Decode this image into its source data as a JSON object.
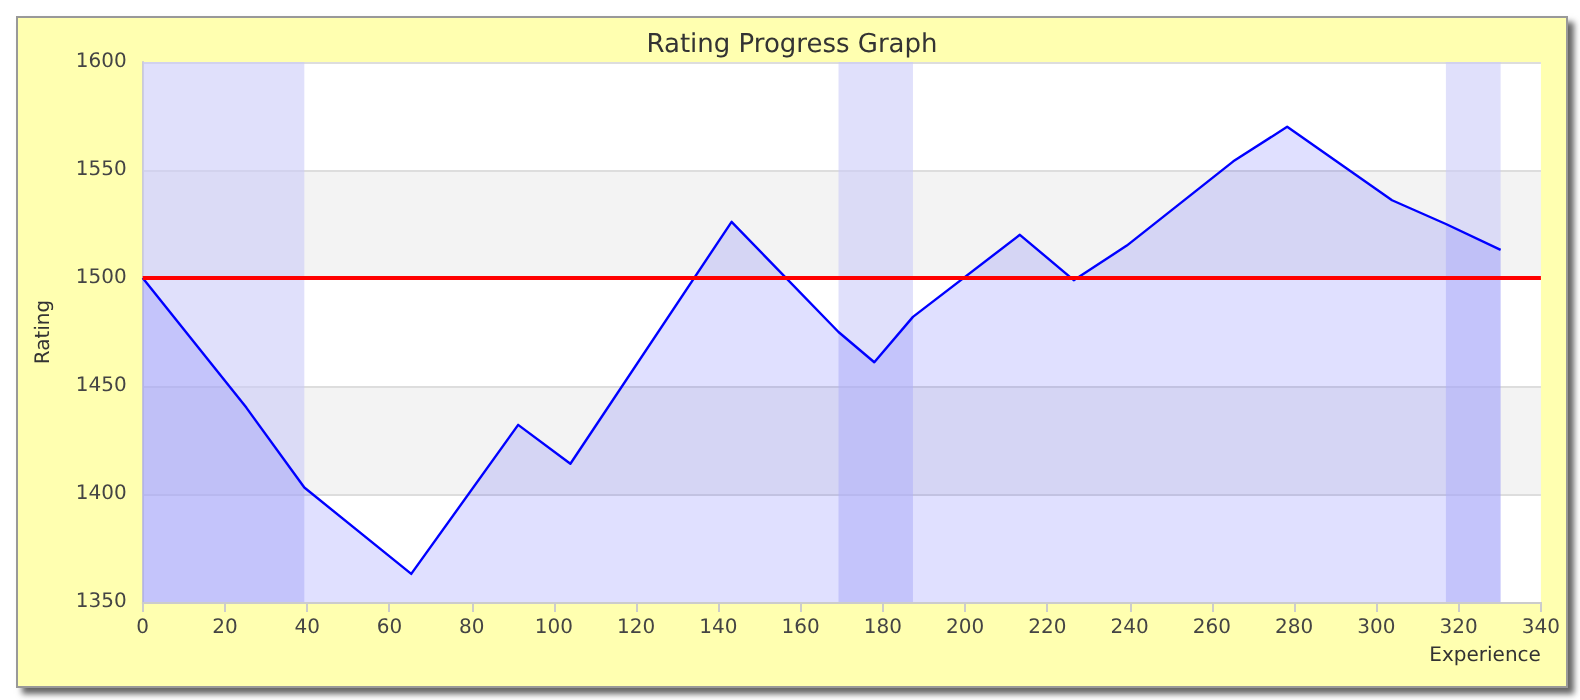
{
  "chart_data": {
    "type": "area",
    "title": "Rating Progress Graph",
    "xlabel": "Experience",
    "ylabel": "Rating",
    "x": [
      0,
      25.2,
      39.3,
      65.3,
      91.3,
      104,
      143.2,
      169.2,
      177.9,
      187.3,
      213.3,
      226.4,
      239.3,
      265.2,
      278.3,
      303.8,
      316.9,
      330.2
    ],
    "series": [
      {
        "color": "#0000ff",
        "values": [
          1500,
          1440,
          1403,
          1363,
          1432,
          1414,
          1526,
          1475,
          1461,
          1482,
          1520,
          1499,
          1515,
          1554,
          1570,
          1536,
          1525,
          1513
        ]
      }
    ],
    "xlim": [
      0,
      340
    ],
    "xticks": [
      0,
      20,
      40,
      60,
      80,
      100,
      120,
      140,
      160,
      180,
      200,
      220,
      240,
      260,
      280,
      300,
      320,
      340
    ],
    "ylim": [
      1350,
      1600
    ],
    "yticks": [
      1350,
      1400,
      1450,
      1500,
      1550,
      1600
    ],
    "ref_lines": [
      {
        "axis": "y",
        "value": 1500,
        "color": "#ff0000"
      }
    ],
    "bands": [
      {
        "axis": "x",
        "from": 0,
        "to": 39.3,
        "color": "#ccccf8"
      },
      {
        "axis": "x",
        "from": 169.2,
        "to": 187.3,
        "color": "#ccccf8"
      },
      {
        "axis": "x",
        "from": 316.9,
        "to": 330.2,
        "color": "#ccccf8"
      }
    ],
    "grid": "y",
    "marker": "none"
  }
}
